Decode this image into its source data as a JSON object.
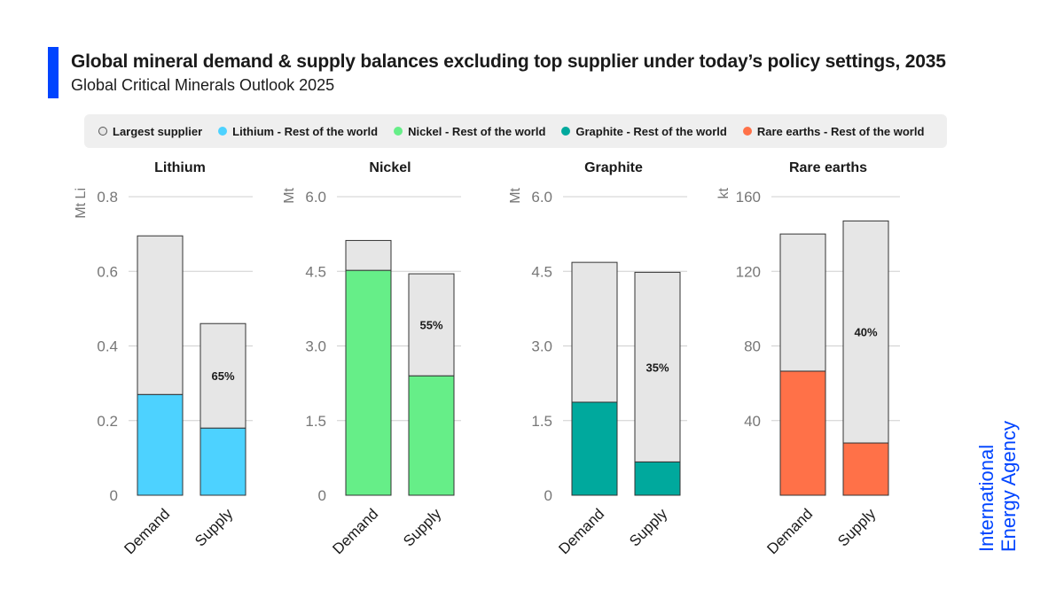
{
  "header": {
    "title": "Global mineral demand & supply balances excluding top supplier under today’s policy settings, 2035",
    "subtitle": "Global Critical Minerals Outlook 2025"
  },
  "legend": [
    {
      "label": "Largest supplier",
      "color": "#e6e6e6",
      "outline": "#555555"
    },
    {
      "label": "Lithium - Rest of the world",
      "color": "#4dd2ff"
    },
    {
      "label": "Nickel - Rest of the world",
      "color": "#66ee88"
    },
    {
      "label": "Graphite - Rest of the world",
      "color": "#00a99d"
    },
    {
      "label": "Rare earths - Rest of the world",
      "color": "#ff7148"
    }
  ],
  "logo": {
    "line1": "International",
    "line2": "Energy Agency",
    "color": "#0044ff"
  },
  "chart_data": [
    {
      "type": "bar",
      "stacked": true,
      "title": "Lithium",
      "ylabel": "Mt Li",
      "ylim": [
        0,
        0.8
      ],
      "yticks": [
        0,
        0.2,
        0.4,
        0.6,
        0.8
      ],
      "ytick_labels": [
        "0",
        "0.2",
        "0.4",
        "0.6",
        "0.8"
      ],
      "categories": [
        "Demand",
        "Supply"
      ],
      "series": [
        {
          "name": "Lithium - Rest of the world",
          "color": "#4dd2ff",
          "values": [
            0.27,
            0.18
          ]
        },
        {
          "name": "Largest supplier",
          "color": "#e6e6e6",
          "values": [
            0.425,
            0.28
          ]
        }
      ],
      "annotations": [
        "",
        "65%"
      ]
    },
    {
      "type": "bar",
      "stacked": true,
      "title": "Nickel",
      "ylabel": "Mt",
      "ylim": [
        0,
        6.0
      ],
      "yticks": [
        0,
        1.5,
        3.0,
        4.5,
        6.0
      ],
      "ytick_labels": [
        "0",
        "1.5",
        "3.0",
        "4.5",
        "6.0"
      ],
      "categories": [
        "Demand",
        "Supply"
      ],
      "series": [
        {
          "name": "Nickel - Rest of the world",
          "color": "#66ee88",
          "values": [
            4.52,
            2.4
          ]
        },
        {
          "name": "Largest supplier",
          "color": "#e6e6e6",
          "values": [
            0.6,
            2.05
          ]
        }
      ],
      "annotations": [
        "",
        "55%"
      ]
    },
    {
      "type": "bar",
      "stacked": true,
      "title": "Graphite",
      "ylabel": "Mt",
      "ylim": [
        0,
        6.0
      ],
      "yticks": [
        0,
        1.5,
        3.0,
        4.5,
        6.0
      ],
      "ytick_labels": [
        "0",
        "1.5",
        "3.0",
        "4.5",
        "6.0"
      ],
      "categories": [
        "Demand",
        "Supply"
      ],
      "series": [
        {
          "name": "Graphite - Rest of the world",
          "color": "#00a99d",
          "values": [
            1.87,
            0.67
          ]
        },
        {
          "name": "Largest supplier",
          "color": "#e6e6e6",
          "values": [
            2.81,
            3.81
          ]
        }
      ],
      "annotations": [
        "",
        "35%"
      ]
    },
    {
      "type": "bar",
      "stacked": true,
      "title": "Rare earths",
      "ylabel": "kt",
      "ylim": [
        0,
        160
      ],
      "yticks": [
        0,
        40,
        80,
        120,
        160
      ],
      "ytick_labels": [
        "",
        "40",
        "80",
        "120",
        "160"
      ],
      "categories": [
        "Demand",
        "Supply"
      ],
      "series": [
        {
          "name": "Rare earths - Rest of the world",
          "color": "#ff7148",
          "values": [
            66.5,
            28
          ]
        },
        {
          "name": "Largest supplier",
          "color": "#e6e6e6",
          "values": [
            73.5,
            119
          ]
        }
      ],
      "annotations": [
        "",
        "40%"
      ]
    }
  ]
}
